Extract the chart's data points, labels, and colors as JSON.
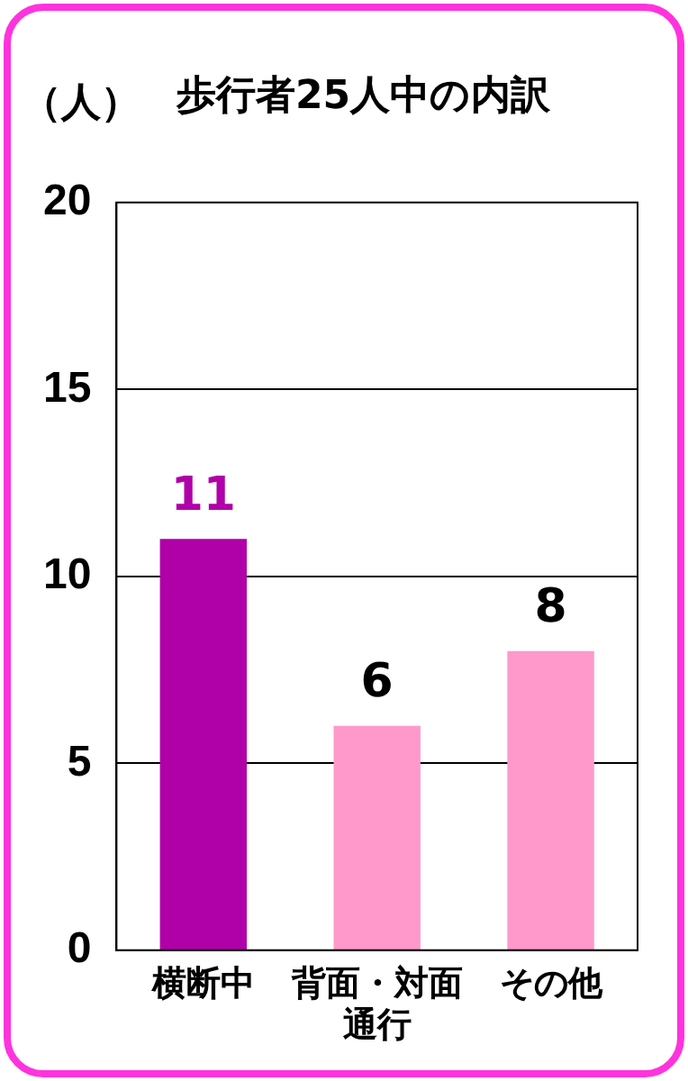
{
  "chart_data": {
    "type": "bar",
    "title": "歩行者25人中の内訳",
    "ylabel": "（人）",
    "categories": [
      "横断中",
      "背面・対面通行",
      "その他"
    ],
    "values": [
      11,
      6,
      8
    ],
    "colors": [
      "#b000a8",
      "#ff99cc",
      "#ff99cc"
    ],
    "ylim": [
      0,
      20
    ],
    "yticks": [
      0,
      5,
      10,
      15,
      20
    ],
    "grid": "y",
    "data_labels": true
  }
}
